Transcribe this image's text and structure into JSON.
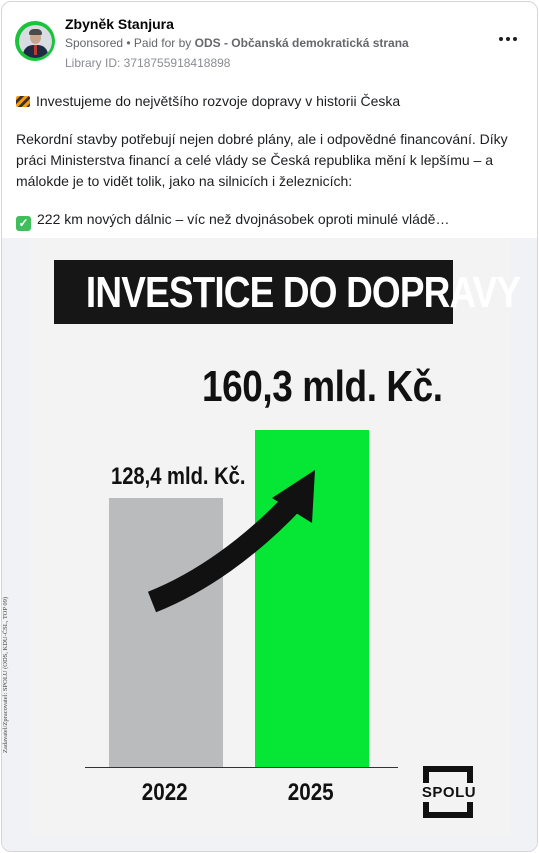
{
  "post": {
    "author": "Zbyněk Stanjura",
    "sponsored": "Sponsored",
    "paid_prefix": "• Paid for by",
    "payer": "ODS - Občanská demokratická strana",
    "library_id": "Library ID: 3718755918418898",
    "lines": [
      "Investujeme do největšího rozvoje dopravy v historii Česka",
      "Rekordní stavby potřebují nejen dobré plány, ale i odpovědné financování. Díky",
      "práci Ministerstva financí a celé vlády se Česká republika mění k lepšímu – a",
      "málokde je to vidět tolik, jako na silnicích i železnicích:",
      "222 km nových dálnic – víc než dvojnásobek oproti minulé vládě…"
    ],
    "icons": {
      "barrier": "construction-barrier-icon",
      "check": "check-mark-icon",
      "more": "more-options-icon"
    }
  },
  "creative": {
    "title": "INVESTICE DO DOPRAVY",
    "big_label": "160,3 mld. Kč.",
    "small_label": "128,4 mld. Kč.",
    "source_note": "Zadavatel/Zpracovatel: SPOLU (ODS, KDU-ČSL, TOP 09)",
    "logo_text": "SPOLU",
    "colors": {
      "bar_2022": "#b9bbbd",
      "bar_2025": "#06e634",
      "title_bg": "#161616"
    }
  },
  "chart_data": {
    "type": "bar",
    "categories": [
      "2022",
      "2025"
    ],
    "values": [
      128.4,
      160.3
    ],
    "title": "INVESTICE DO DOPRAVY",
    "xlabel": "",
    "ylabel": "",
    "unit": "mld. Kč."
  }
}
